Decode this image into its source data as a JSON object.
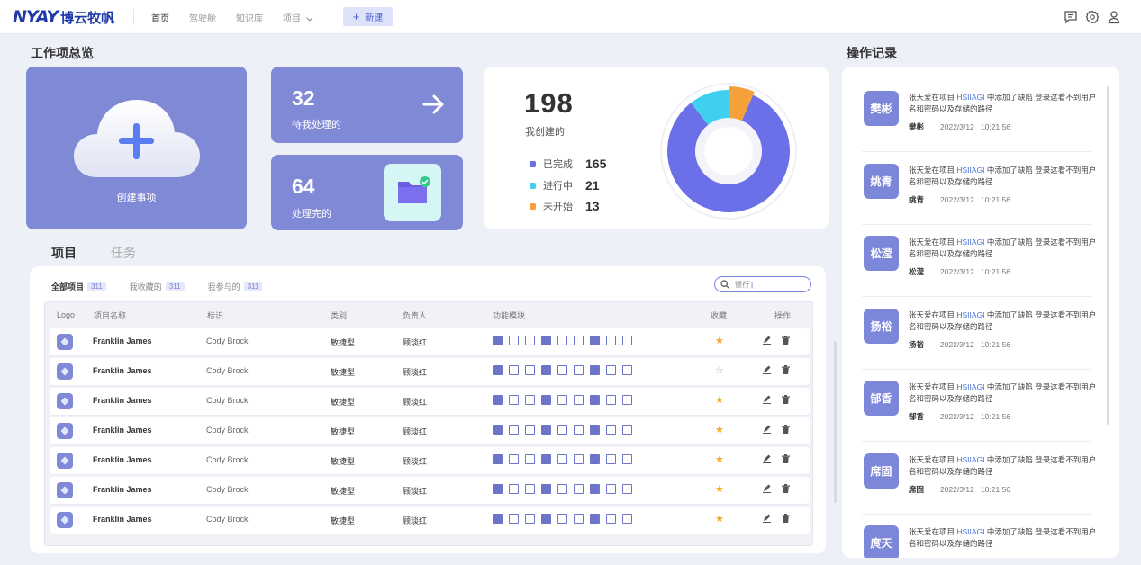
{
  "header": {
    "logo_mark": "NYAY",
    "logo_text": "博云牧帆",
    "nav": [
      {
        "label": "首页",
        "active": true
      },
      {
        "label": "驾驶舱",
        "active": false
      },
      {
        "label": "知识库",
        "active": false
      },
      {
        "label": "项目",
        "active": false,
        "dropdown": true
      }
    ],
    "new_button": "新建",
    "icons": [
      "message-icon",
      "settings-icon",
      "user-icon"
    ]
  },
  "overview": {
    "title": "工作项总览",
    "create_label": "创建事项",
    "pending": {
      "value": "32",
      "label": "待我处理的"
    },
    "done": {
      "value": "64",
      "label": "处理完的"
    },
    "created": {
      "value": "198",
      "label": "我创建的"
    },
    "legend": [
      {
        "label": "已完成",
        "value": "165",
        "color": "#6b6fe8"
      },
      {
        "label": "进行中",
        "value": "21",
        "color": "#3fd0f0"
      },
      {
        "label": "未开始",
        "value": "13",
        "color": "#f5a03a"
      }
    ]
  },
  "chart_data": {
    "type": "pie",
    "categories": [
      "已完成",
      "进行中",
      "未开始"
    ],
    "values": [
      165,
      21,
      13
    ]
  },
  "tabs": [
    {
      "label": "项目",
      "active": true
    },
    {
      "label": "任务",
      "active": false
    }
  ],
  "filters": [
    {
      "label": "全部项目",
      "count": "311",
      "active": true
    },
    {
      "label": "我收藏的",
      "count": "311",
      "active": false
    },
    {
      "label": "我参与的",
      "count": "311",
      "active": false
    }
  ],
  "search": {
    "value": "银行"
  },
  "table": {
    "headers": [
      "Logo",
      "项目名称",
      "标识",
      "类别",
      "负责人",
      "功能模块",
      "收藏",
      "操作"
    ],
    "rows": [
      {
        "name": "Franklin James",
        "id": "Cody Brock",
        "type": "敏捷型",
        "owner": "顾琰红",
        "fav": true
      },
      {
        "name": "Franklin James",
        "id": "Cody Brock",
        "type": "敏捷型",
        "owner": "顾琰红",
        "fav": false
      },
      {
        "name": "Franklin James",
        "id": "Cody Brock",
        "type": "敏捷型",
        "owner": "顾琰红",
        "fav": true
      },
      {
        "name": "Franklin James",
        "id": "Cody Brock",
        "type": "敏捷型",
        "owner": "顾琰红",
        "fav": true
      },
      {
        "name": "Franklin James",
        "id": "Cody Brock",
        "type": "敏捷型",
        "owner": "顾琰红",
        "fav": true
      },
      {
        "name": "Franklin James",
        "id": "Cody Brock",
        "type": "敏捷型",
        "owner": "顾琰红",
        "fav": true
      },
      {
        "name": "Franklin James",
        "id": "Cody Brock",
        "type": "敏捷型",
        "owner": "顾琰红",
        "fav": true
      }
    ]
  },
  "log": {
    "title": "操作记录",
    "text_prefix": "张天爱在项目 ",
    "text_link": "HSIIAGI",
    "text_suffix": " 中添加了缺陷 登录这看不到用户名和密码以及存储的路径",
    "items": [
      {
        "avatar": "樊彬",
        "user": "樊彬",
        "date": "2022/3/12",
        "time": "10:21:56"
      },
      {
        "avatar": "姚青",
        "user": "姚青",
        "date": "2022/3/12",
        "time": "10:21:56"
      },
      {
        "avatar": "松滢",
        "user": "松滢",
        "date": "2022/3/12",
        "time": "10:21:56"
      },
      {
        "avatar": "扬裕",
        "user": "扬裕",
        "date": "2022/3/12",
        "time": "10:21:56"
      },
      {
        "avatar": "郜香",
        "user": "郜香",
        "date": "2022/3/12",
        "time": "10:21:56"
      },
      {
        "avatar": "席固",
        "user": "席固",
        "date": "2022/3/12",
        "time": "10:21:56"
      },
      {
        "avatar": "庹天",
        "user": "",
        "date": "",
        "time": ""
      }
    ]
  }
}
